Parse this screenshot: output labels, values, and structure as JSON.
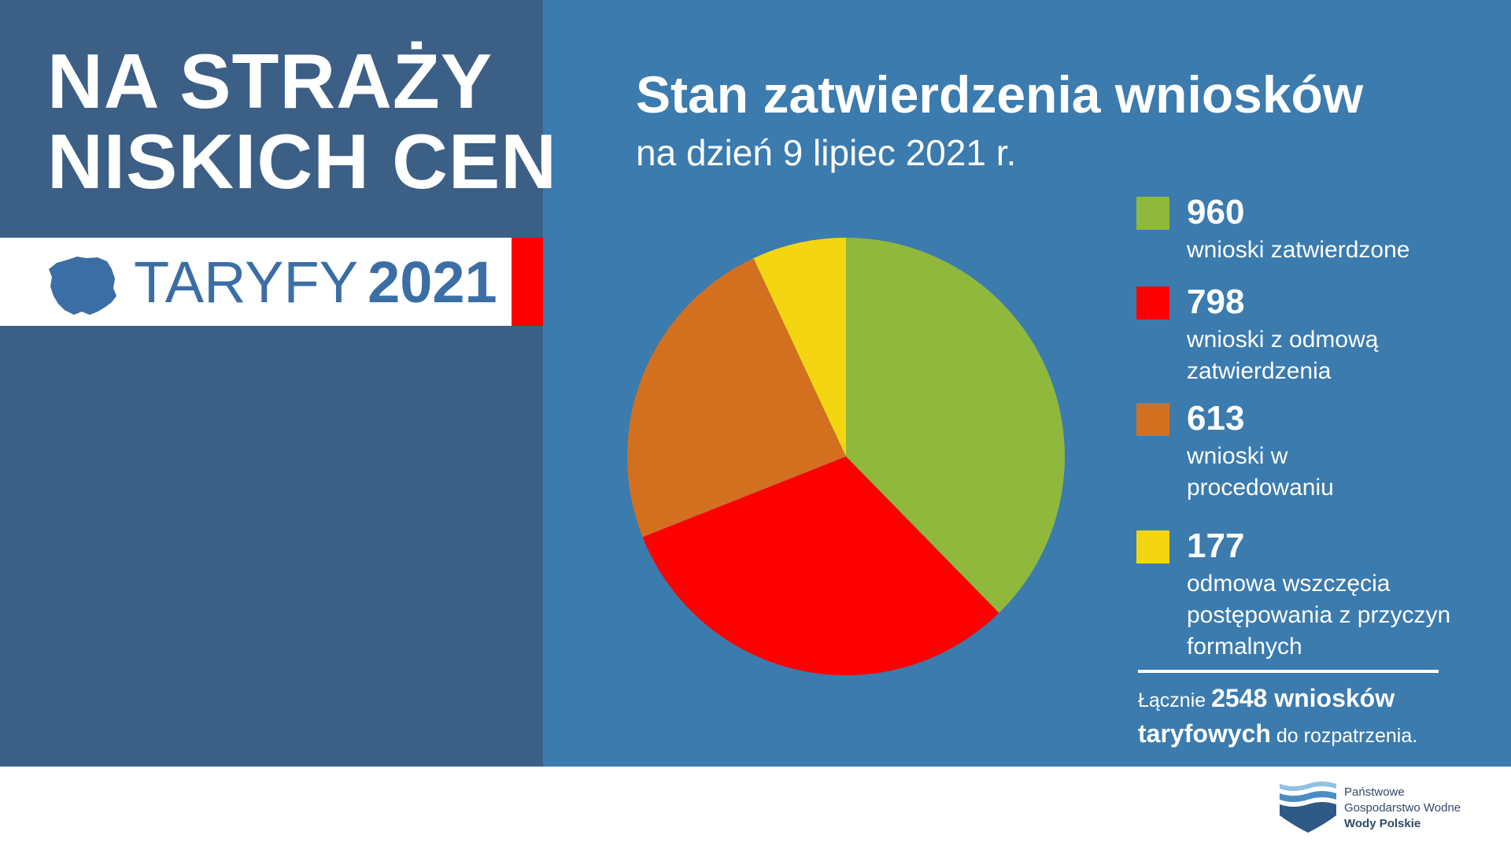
{
  "header": {
    "headline_line1": "NA STRAŻY",
    "headline_line2": "NISKICH CEN",
    "taryfy_word": "TARYFY",
    "taryfy_year": "2021"
  },
  "chart_data": {
    "type": "pie",
    "title": "Stan zatwierdzenia wniosków",
    "subtitle": "na dzień 9 lipiec 2021 r.",
    "slices": [
      {
        "value": 960,
        "label": "wnioski zatwierdzone",
        "color": "#8fb83c"
      },
      {
        "value": 798,
        "label": "wnioski z odmową zatwierdzenia",
        "color": "#ff0000"
      },
      {
        "value": 613,
        "label": "wnioski w procedowaniu",
        "color": "#d3701f"
      },
      {
        "value": 177,
        "label": "odmowa wszczęcia postępowania z przyczyn formalnych",
        "color": "#f4d512"
      }
    ],
    "legend_position": "right"
  },
  "legend": [
    {
      "value": "960",
      "label": "wnioski zatwierdzone"
    },
    {
      "value": "798",
      "label": "wnioski z odmową zatwierdzenia"
    },
    {
      "value": "613",
      "label": "wnioski w procedowaniu"
    },
    {
      "value": "177",
      "label": "odmowa wszczęcia postępowania z przyczyn formalnych"
    }
  ],
  "total": {
    "prefix": "Łącznie",
    "bold": "2548 wniosków taryfowych",
    "suffix": "do rozpatrzenia."
  },
  "footer": {
    "logo_line1": "Państwowe",
    "logo_line2": "Gospodarstwo Wodne",
    "logo_line3": "Wody Polskie"
  },
  "colors": {
    "left_panel": "#3c5f86",
    "right_panel": "#3b7bae",
    "accent_red": "#ff0000",
    "taryfy_blue": "#3b6ea5"
  }
}
